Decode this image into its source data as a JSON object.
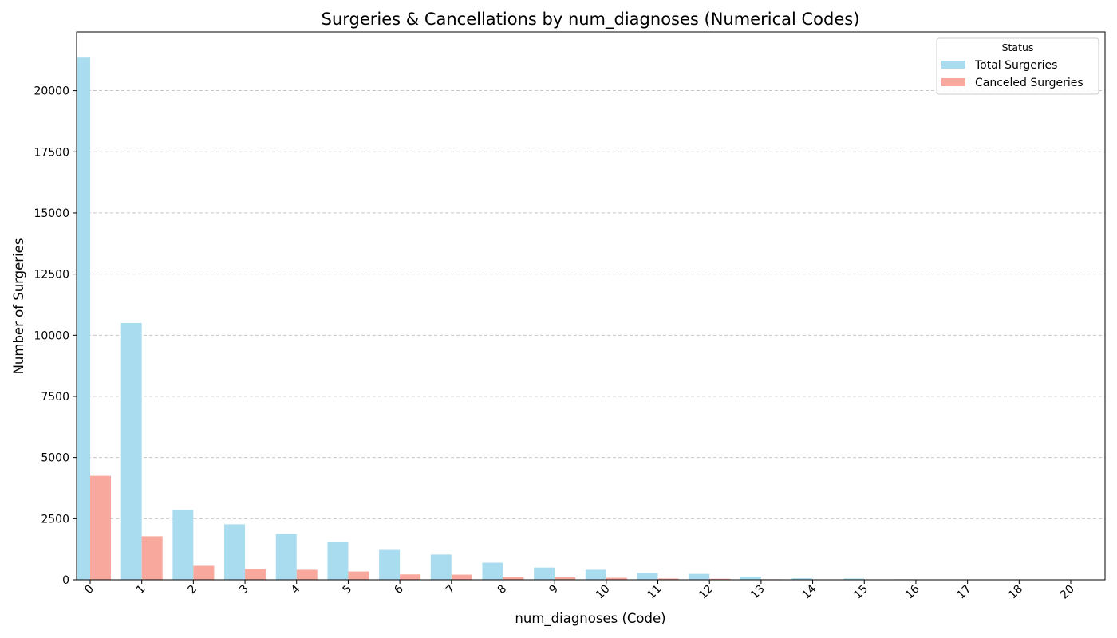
{
  "chart_data": {
    "type": "bar",
    "title": "Surgeries & Cancellations by num_diagnoses (Numerical Codes)",
    "xlabel": "num_diagnoses (Code)",
    "ylabel": "Number of Surgeries",
    "categories": [
      "0",
      "1",
      "2",
      "3",
      "4",
      "5",
      "6",
      "7",
      "8",
      "9",
      "10",
      "11",
      "12",
      "13",
      "14",
      "15",
      "16",
      "17",
      "18",
      "20"
    ],
    "series": [
      {
        "name": "Total Surgeries",
        "color": "#a8dcee",
        "values": [
          21350,
          10500,
          2850,
          2270,
          1880,
          1540,
          1220,
          1030,
          700,
          500,
          410,
          280,
          240,
          130,
          60,
          50,
          20,
          10,
          5,
          3
        ]
      },
      {
        "name": "Canceled Surgeries",
        "color": "#f8a89c",
        "values": [
          4250,
          1780,
          570,
          440,
          410,
          340,
          220,
          210,
          110,
          100,
          80,
          50,
          40,
          20,
          8,
          6,
          3,
          2,
          1,
          1
        ]
      }
    ],
    "yticks": [
      "0",
      "2500",
      "5000",
      "7500",
      "10000",
      "12500",
      "15000",
      "17500",
      "20000"
    ],
    "ylim": [
      0,
      22400
    ],
    "legend": {
      "title": "Status",
      "placement": "top-right"
    },
    "grid": "y-dashed"
  }
}
